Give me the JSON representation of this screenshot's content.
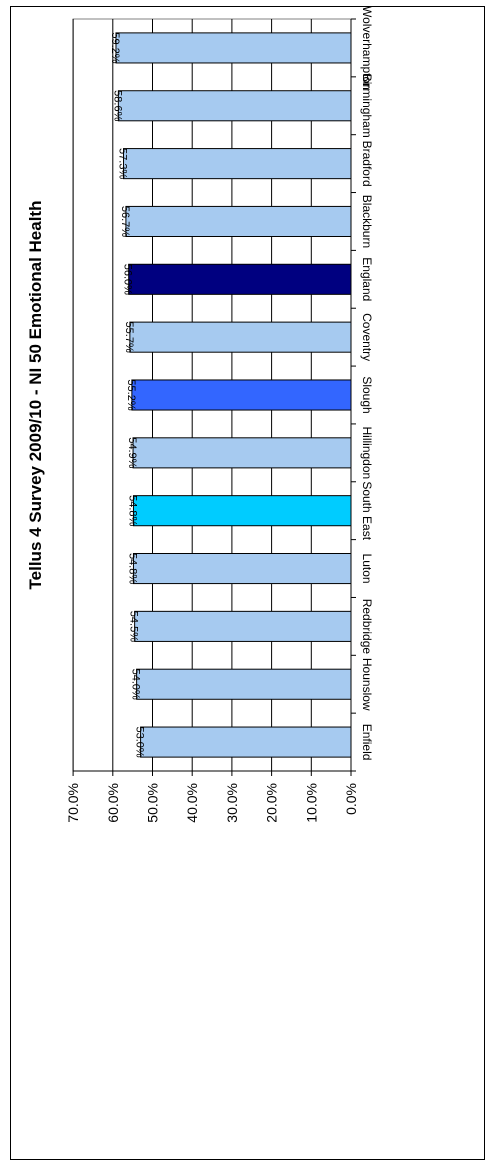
{
  "chart_data": {
    "type": "bar",
    "orientation": "horizontal",
    "title": "Tellus 4 Survey 2009/10 - NI 50 Emotional Health",
    "xlabel": "",
    "ylabel": "",
    "categories": [
      "Enfield",
      "Hounslow",
      "Redbridge",
      "Luton",
      "South East",
      "Hillingdon",
      "Slough",
      "Coventry",
      "England",
      "Blackburn",
      "Bradford",
      "Birmingham",
      "Wolverhampton"
    ],
    "values": [
      53.0,
      54.0,
      54.5,
      54.8,
      54.8,
      54.9,
      55.2,
      55.7,
      56.0,
      56.7,
      57.3,
      58.6,
      59.2
    ],
    "data_labels": [
      "53.0%",
      "54.0%",
      "54.5%",
      "54.8%",
      "54.8%",
      "54.9%",
      "55.2%",
      "55.7%",
      "56.0%",
      "56.7%",
      "57.3%",
      "58.6%",
      "59.2%"
    ],
    "bar_colors": [
      "#A6CAF0",
      "#A6CAF0",
      "#A6CAF0",
      "#A6CAF0",
      "#00CCFF",
      "#A6CAF0",
      "#3366FF",
      "#A6CAF0",
      "#000080",
      "#A6CAF0",
      "#A6CAF0",
      "#A6CAF0",
      "#A6CAF0"
    ],
    "value_axis": {
      "min": 0,
      "max": 70,
      "step": 10,
      "tick_labels": [
        "0.0%",
        "10.0%",
        "20.0%",
        "30.0%",
        "40.0%",
        "50.0%",
        "60.0%",
        "70.0%"
      ]
    },
    "grid": true,
    "legend": "none",
    "rotation": "chart rotated 90 degrees clockwise"
  }
}
